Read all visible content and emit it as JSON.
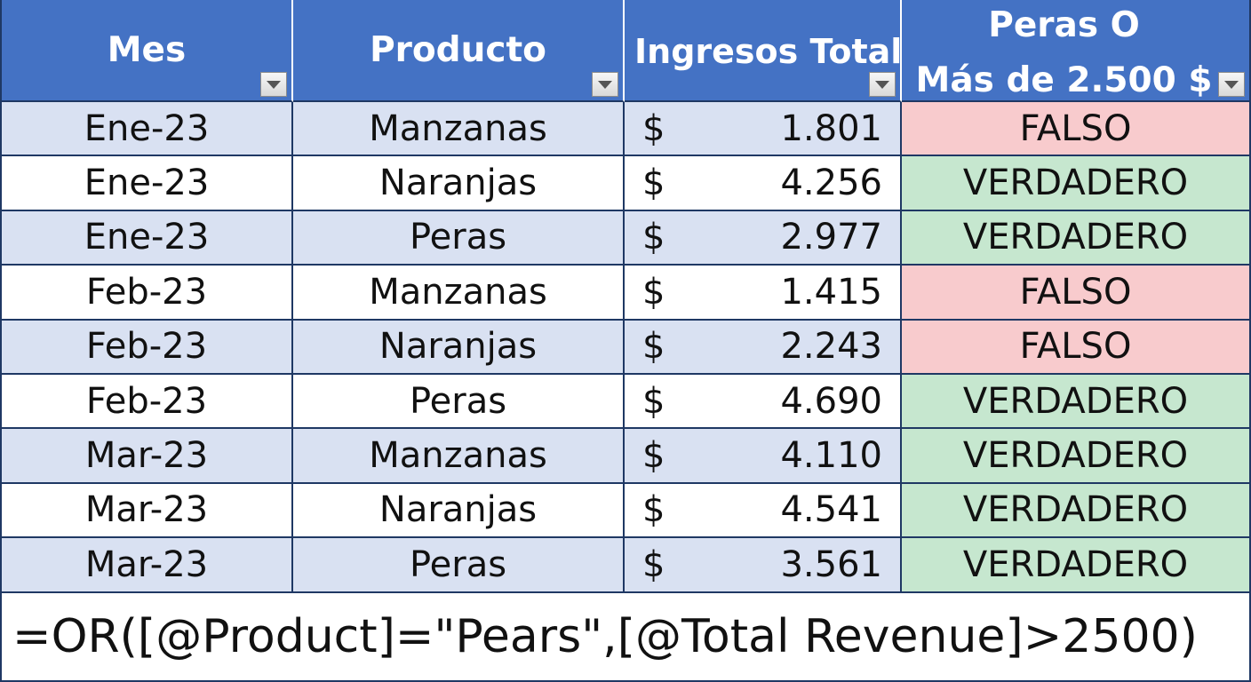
{
  "table": {
    "headers": [
      {
        "label": "Mes"
      },
      {
        "label": "Producto"
      },
      {
        "label": "Ingresos Totales"
      },
      {
        "line1": "Peras O",
        "line2": "Más de 2.500 $"
      }
    ],
    "currency_symbol": "$",
    "rows": [
      {
        "mes": "Ene-23",
        "producto": "Manzanas",
        "ingresos": "1.801",
        "resultado": "FALSO"
      },
      {
        "mes": "Ene-23",
        "producto": "Naranjas",
        "ingresos": "4.256",
        "resultado": "VERDADERO"
      },
      {
        "mes": "Ene-23",
        "producto": "Peras",
        "ingresos": "2.977",
        "resultado": "VERDADERO"
      },
      {
        "mes": "Feb-23",
        "producto": "Manzanas",
        "ingresos": "1.415",
        "resultado": "FALSO"
      },
      {
        "mes": "Feb-23",
        "producto": "Naranjas",
        "ingresos": "2.243",
        "resultado": "FALSO"
      },
      {
        "mes": "Feb-23",
        "producto": "Peras",
        "ingresos": "4.690",
        "resultado": "VERDADERO"
      },
      {
        "mes": "Mar-23",
        "producto": "Manzanas",
        "ingresos": "4.110",
        "resultado": "VERDADERO"
      },
      {
        "mes": "Mar-23",
        "producto": "Naranjas",
        "ingresos": "4.541",
        "resultado": "VERDADERO"
      },
      {
        "mes": "Mar-23",
        "producto": "Peras",
        "ingresos": "3.561",
        "resultado": "VERDADERO"
      }
    ]
  },
  "formula": "=OR([@Product]=\"Pears\",[@Total Revenue]>2500)",
  "colors": {
    "header_bg": "#4472c4",
    "band_row": "#d9e1f2",
    "false_fill": "#f8cbcd",
    "true_fill": "#c6e7cf",
    "grid_line": "#1f3864"
  },
  "icons": {
    "filter_dropdown": "chevron-down-icon"
  }
}
